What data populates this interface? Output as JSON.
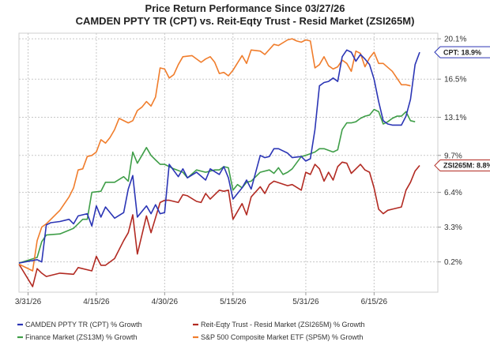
{
  "chart_data": {
    "type": "line",
    "title": "Price Return Performance Since 03/27/26",
    "subtitle": "CAMDEN PPTY TR (CPT)  vs.  Reit-Eqty Trust - Resid Market (ZSI265M)",
    "x_tick_labels": [
      "3/31/26",
      "4/15/26",
      "4/30/26",
      "5/15/26",
      "5/31/26",
      "6/15/26"
    ],
    "x_tick_index": [
      2,
      17,
      32,
      47,
      63,
      78
    ],
    "y_tick_labels": [
      "20.1%",
      "16.5%",
      "13.1%",
      "9.7%",
      "6.4%",
      "3.3%",
      "0.2%"
    ],
    "y_tick_values": [
      20.1,
      16.5,
      13.1,
      9.7,
      6.4,
      3.3,
      0.2
    ],
    "ylim": [
      -2.5,
      20.6
    ],
    "x_count": 93,
    "grid": true,
    "series": [
      {
        "name": "CAMDEN PPTY TR (CPT) % Growth",
        "color": "#2b35b5",
        "x": [
          0,
          4,
          5,
          6,
          7,
          9,
          11,
          12,
          13,
          15,
          16,
          17,
          18,
          19,
          21,
          23,
          24,
          25,
          26,
          28,
          29,
          30,
          31,
          32,
          33,
          35,
          36,
          37,
          39,
          41,
          42,
          44,
          45,
          46,
          47,
          49,
          50,
          51,
          53,
          54,
          55,
          56,
          57,
          59,
          60,
          62,
          63,
          64,
          65,
          66,
          67,
          68,
          69,
          70,
          71,
          72,
          73,
          74,
          75,
          76,
          77,
          78,
          79,
          80,
          81,
          82,
          84,
          85,
          86,
          87,
          88
        ],
        "y": [
          0.1,
          0.4,
          0.2,
          3.5,
          3.7,
          3.8,
          4.0,
          3.6,
          4.3,
          4.5,
          3.4,
          5.2,
          4.2,
          5.1,
          4.1,
          4.6,
          6.7,
          7.9,
          4.2,
          5.2,
          4.5,
          5.3,
          4.5,
          4.6,
          8.9,
          7.8,
          8.5,
          7.7,
          8.2,
          7.5,
          8.5,
          8.0,
          8.7,
          7.7,
          5.8,
          6.8,
          7.5,
          6.7,
          9.7,
          9.5,
          9.6,
          10.3,
          10.3,
          9.9,
          9.5,
          9.6,
          9.2,
          9.4,
          12.0,
          15.9,
          16.2,
          16.3,
          16.6,
          16.3,
          18.5,
          19.1,
          18.9,
          18.1,
          18.7,
          18.3,
          17.8,
          16.5,
          14.5,
          12.8,
          12.5,
          12.4,
          12.4,
          13.2,
          14.7,
          17.8,
          18.9
        ]
      },
      {
        "name": "Reit-Eqty Trust - Resid Market (ZSI265M) % Growth",
        "color": "#b22a22",
        "x": [
          0,
          3,
          4,
          5,
          6,
          9,
          12,
          13,
          16,
          17,
          18,
          19,
          21,
          23,
          24,
          25,
          26,
          28,
          29,
          31,
          32,
          33,
          35,
          36,
          37,
          39,
          40,
          41,
          42,
          44,
          45,
          46,
          47,
          49,
          50,
          51,
          53,
          54,
          55,
          56,
          59,
          60,
          62,
          63,
          64,
          65,
          66,
          67,
          68,
          69,
          70,
          71,
          72,
          73,
          74,
          75,
          76,
          77,
          78,
          79,
          80,
          81,
          82,
          84,
          85,
          86,
          87,
          88
        ],
        "y": [
          0.0,
          -2.0,
          -0.4,
          -0.8,
          -1.1,
          -0.8,
          -0.9,
          -0.3,
          -0.6,
          0.7,
          -0.1,
          -0.1,
          0.5,
          2.1,
          2.8,
          4.4,
          0.9,
          4.3,
          2.8,
          5.5,
          5.7,
          5.7,
          5.5,
          6.2,
          6.1,
          5.6,
          5.5,
          6.3,
          5.8,
          6.6,
          6.5,
          6.6,
          4.0,
          5.4,
          4.4,
          6.0,
          6.9,
          6.3,
          7.1,
          7.4,
          7.0,
          7.1,
          6.6,
          8.2,
          8.0,
          8.9,
          8.5,
          7.4,
          8.2,
          7.5,
          8.7,
          9.1,
          9.0,
          8.1,
          8.5,
          8.9,
          8.4,
          8.2,
          6.8,
          4.9,
          4.5,
          4.8,
          4.9,
          5.1,
          6.6,
          7.3,
          8.3,
          8.8
        ]
      },
      {
        "name": "Finance Market (ZS13M) % Growth",
        "color": "#3f9e48",
        "x": [
          0,
          4,
          5,
          6,
          9,
          12,
          14,
          15,
          16,
          18,
          19,
          21,
          23,
          24,
          25,
          26,
          28,
          29,
          30,
          31,
          32,
          34,
          36,
          37,
          39,
          41,
          43,
          44,
          45,
          46,
          47,
          48,
          49,
          50,
          51,
          53,
          55,
          56,
          57,
          58,
          59,
          60,
          62,
          63,
          65,
          66,
          67,
          69,
          70,
          71,
          72,
          73,
          74,
          75,
          76,
          77,
          78,
          79,
          80,
          81,
          82,
          83,
          84,
          85,
          86,
          87
        ],
        "y": [
          0.1,
          0.6,
          2.0,
          2.6,
          2.7,
          3.2,
          4.0,
          4.0,
          6.4,
          6.5,
          7.3,
          7.3,
          7.8,
          7.4,
          10.0,
          9.0,
          10.4,
          9.7,
          9.3,
          8.9,
          8.9,
          8.5,
          8.2,
          7.7,
          8.4,
          8.2,
          8.4,
          8.4,
          8.7,
          8.6,
          6.6,
          7.1,
          6.8,
          7.3,
          7.4,
          8.2,
          8.4,
          8.1,
          8.6,
          8.0,
          8.2,
          8.5,
          9.6,
          9.7,
          10.0,
          10.3,
          10.3,
          10.0,
          10.2,
          12.0,
          12.6,
          12.6,
          12.7,
          13.0,
          13.2,
          13.3,
          13.8,
          13.6,
          12.5,
          12.7,
          13.0,
          13.2,
          13.2,
          13.6,
          12.8,
          12.7
        ]
      },
      {
        "name": "S&P 500 Composite Market ETF (SP5M) % Growth",
        "color": "#f07d2c",
        "x": [
          0,
          3,
          4,
          5,
          6,
          9,
          11,
          12,
          13,
          14,
          15,
          16,
          17,
          18,
          19,
          20,
          21,
          22,
          24,
          25,
          26,
          27,
          28,
          29,
          30,
          31,
          32,
          33,
          34,
          35,
          36,
          38,
          40,
          41,
          42,
          43,
          44,
          45,
          46,
          47,
          49,
          50,
          51,
          53,
          54,
          56,
          57,
          59,
          60,
          61,
          62,
          63,
          64,
          65,
          66,
          67,
          68,
          69,
          70,
          71,
          72,
          73,
          74,
          75,
          76,
          77,
          78,
          79,
          80,
          82,
          84,
          85,
          86
        ],
        "y": [
          0.0,
          -0.6,
          2.1,
          3.3,
          3.6,
          4.8,
          6.0,
          6.8,
          8.4,
          8.5,
          9.6,
          9.7,
          10.0,
          11.1,
          10.8,
          11.3,
          12.0,
          13.0,
          12.6,
          12.8,
          13.7,
          14.0,
          14.5,
          14.1,
          14.9,
          17.5,
          17.4,
          16.6,
          16.9,
          17.8,
          18.5,
          18.6,
          18.0,
          18.3,
          18.5,
          18.0,
          17.0,
          17.1,
          16.8,
          17.3,
          18.6,
          17.9,
          19.1,
          19.0,
          18.7,
          19.6,
          19.5,
          20.0,
          20.1,
          19.9,
          19.8,
          20.0,
          19.9,
          17.5,
          17.8,
          18.5,
          17.7,
          17.4,
          17.6,
          18.2,
          17.9,
          17.2,
          19.0,
          18.8,
          17.6,
          18.4,
          18.9,
          17.9,
          17.9,
          17.2,
          16.0,
          16.0,
          15.9
        ]
      }
    ],
    "callouts": [
      {
        "text": "CPT: 18.9%",
        "value": 18.9,
        "color": "#2b35b5"
      },
      {
        "text": "ZSI265M: 8.8%",
        "value": 8.8,
        "color": "#b22a22"
      }
    ],
    "legend_position": "bottom",
    "legend": [
      {
        "label": "CAMDEN PPTY TR (CPT) % Growth",
        "color": "#2b35b5"
      },
      {
        "label": "Reit-Eqty Trust - Resid Market (ZSI265M) % Growth",
        "color": "#b22a22"
      },
      {
        "label": "Finance Market (ZS13M) % Growth",
        "color": "#3f9e48"
      },
      {
        "label": "S&P 500 Composite Market ETF (SP5M) % Growth",
        "color": "#f07d2c"
      }
    ]
  }
}
